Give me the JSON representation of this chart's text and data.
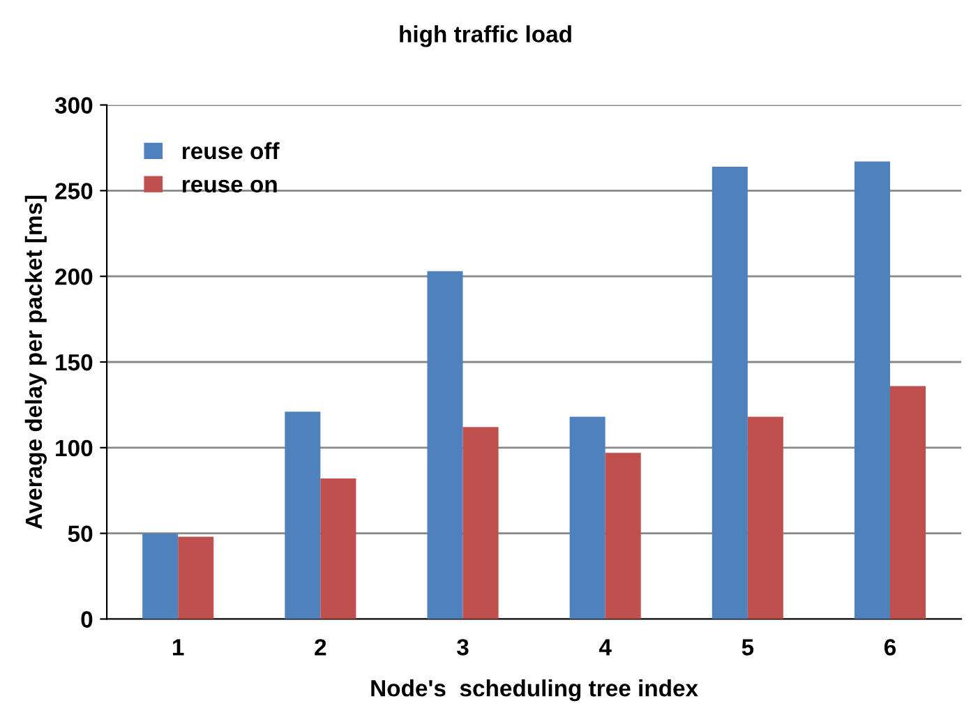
{
  "chart_data": {
    "type": "bar",
    "title": "high traffic load",
    "xlabel": "Node's  scheduling tree index",
    "ylabel": "Average delay per packet [ms]",
    "categories": [
      "1",
      "2",
      "3",
      "4",
      "5",
      "6"
    ],
    "series": [
      {
        "name": "reuse off",
        "color": "#4f81bd",
        "values": [
          50,
          121,
          203,
          118,
          264,
          267
        ]
      },
      {
        "name": "reuse on",
        "color": "#c0504d",
        "values": [
          48,
          82,
          112,
          97,
          118,
          136
        ]
      }
    ],
    "ylim": [
      0,
      300
    ],
    "yticks": [
      0,
      50,
      100,
      150,
      200,
      250,
      300
    ],
    "grid": "y",
    "legend": "top left"
  }
}
